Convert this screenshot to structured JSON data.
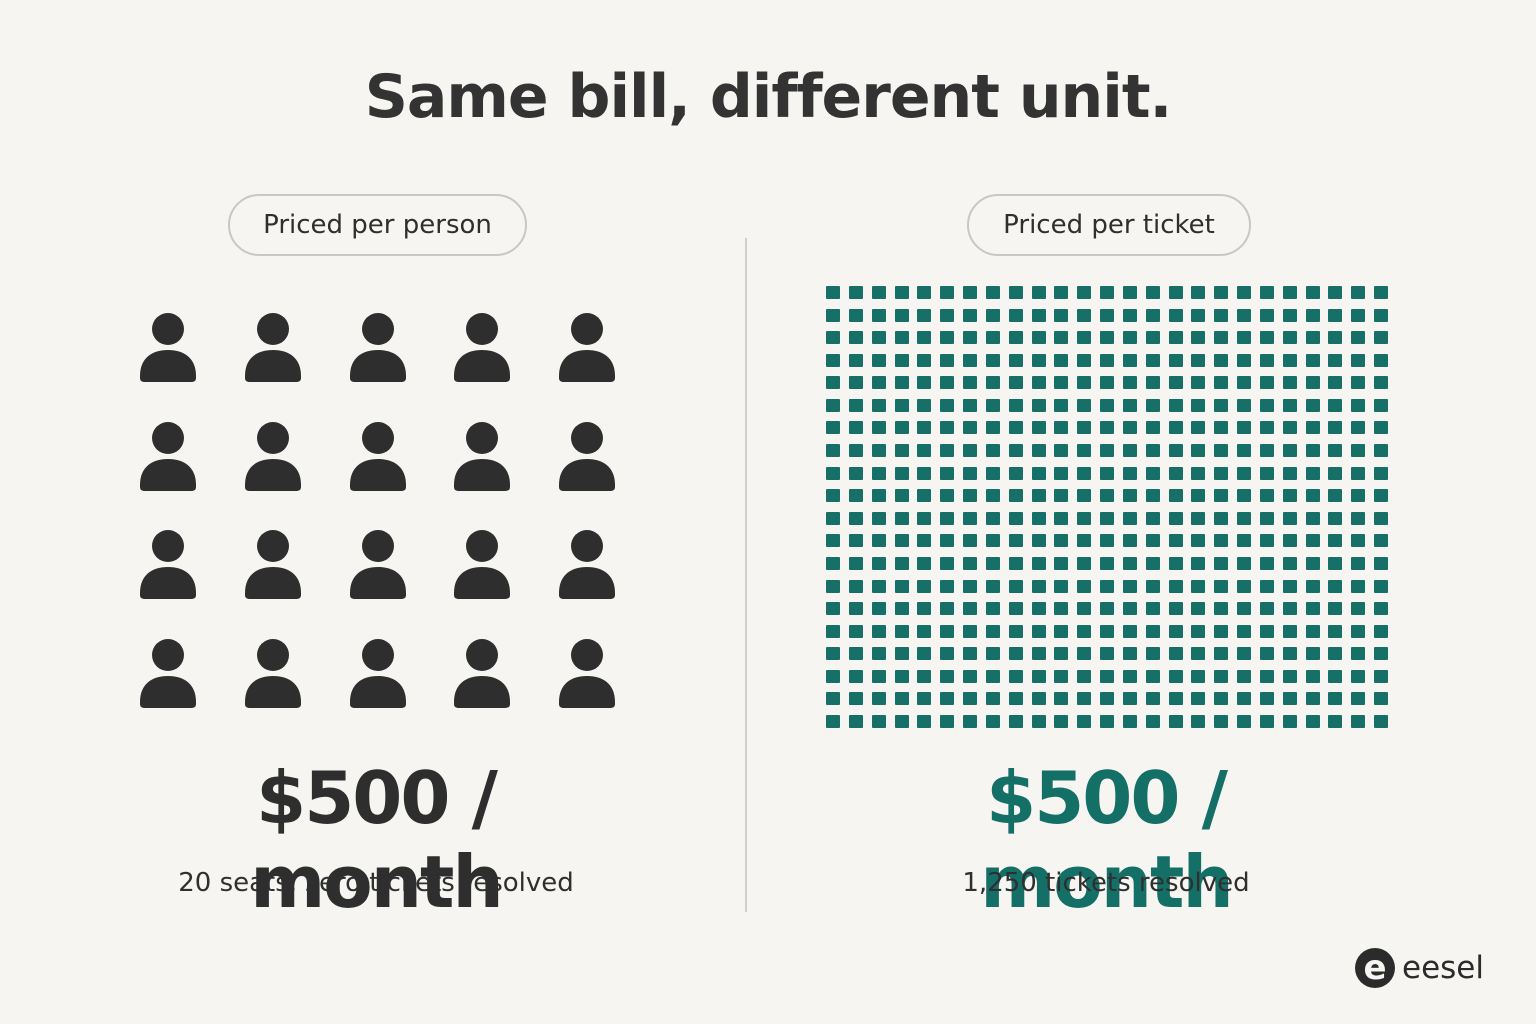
{
  "title": "Same bill, different unit.",
  "left": {
    "label": "Priced per person",
    "icon": "person-icon",
    "rows": 4,
    "columns": 5,
    "count": 20,
    "price": "$500 / month",
    "caption": "20 seats, zero tickets resolved",
    "color": "#2e2e2e"
  },
  "right": {
    "label": "Priced per ticket",
    "icon": "ticket-tile",
    "rows": 20,
    "columns": 25,
    "price": "$500 / month",
    "caption": "1,250 tickets resolved",
    "color": "#167068"
  },
  "brand": {
    "name": "eesel",
    "mark": "e"
  }
}
